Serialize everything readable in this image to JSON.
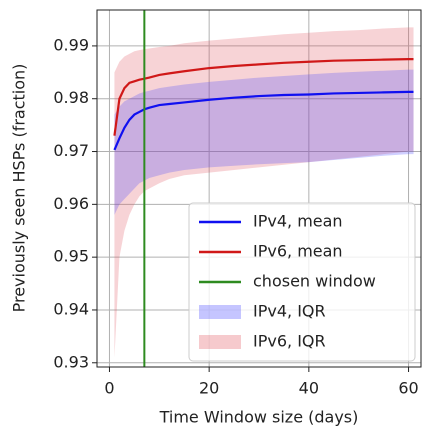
{
  "chart_data": {
    "type": "line",
    "xlabel": "Time Window size (days)",
    "ylabel": "Previously seen HSPs (fraction)",
    "x": [
      1,
      2,
      3,
      4,
      5,
      6,
      7,
      8,
      10,
      12,
      15,
      20,
      25,
      30,
      35,
      40,
      45,
      50,
      55,
      60,
      61
    ],
    "series": [
      {
        "name": "IPv4, mean",
        "color": "#1010f0",
        "values": [
          0.9703,
          0.9725,
          0.9745,
          0.976,
          0.977,
          0.9775,
          0.978,
          0.9783,
          0.9788,
          0.979,
          0.9793,
          0.9798,
          0.9802,
          0.9805,
          0.9807,
          0.9808,
          0.981,
          0.9811,
          0.9812,
          0.9813,
          0.9813
        ]
      },
      {
        "name": "IPv6, mean",
        "color": "#d01818",
        "values": [
          0.973,
          0.98,
          0.982,
          0.983,
          0.9833,
          0.9836,
          0.9838,
          0.984,
          0.9845,
          0.9848,
          0.9852,
          0.9858,
          0.9862,
          0.9865,
          0.9868,
          0.987,
          0.9872,
          0.9873,
          0.9874,
          0.9875,
          0.9875
        ]
      }
    ],
    "vline": {
      "name": "chosen window",
      "x": 7,
      "color": "#2e8b20"
    },
    "bands": [
      {
        "name": "IPv4, IQR",
        "color": "#4040ff",
        "lower": [
          0.958,
          0.96,
          0.961,
          0.962,
          0.963,
          0.964,
          0.9645,
          0.965,
          0.9655,
          0.966,
          0.9665,
          0.967,
          0.9673,
          0.9676,
          0.9678,
          0.968,
          0.9684,
          0.9688,
          0.9692,
          0.9695,
          0.9695
        ],
        "upper": [
          0.977,
          0.9785,
          0.9795,
          0.98,
          0.9805,
          0.981,
          0.9813,
          0.9815,
          0.982,
          0.9823,
          0.9827,
          0.9832,
          0.9836,
          0.984,
          0.9843,
          0.9846,
          0.9849,
          0.9851,
          0.9853,
          0.9855,
          0.9855
        ]
      },
      {
        "name": "IPv6, IQR",
        "color": "#e0505a",
        "lower": [
          0.931,
          0.95,
          0.955,
          0.958,
          0.96,
          0.9615,
          0.9625,
          0.963,
          0.964,
          0.9648,
          0.9655,
          0.966,
          0.9665,
          0.967,
          0.9675,
          0.968,
          0.9685,
          0.969,
          0.9695,
          0.97,
          0.97
        ],
        "upper": [
          0.985,
          0.987,
          0.988,
          0.9885,
          0.989,
          0.9892,
          0.9894,
          0.9895,
          0.9898,
          0.99,
          0.9905,
          0.991,
          0.9914,
          0.9918,
          0.9922,
          0.9925,
          0.9928,
          0.993,
          0.9933,
          0.9935,
          0.9935
        ]
      }
    ],
    "xlim": [
      -2.5,
      62.5
    ],
    "ylim": [
      0.9292,
      0.9968
    ],
    "xticks": [
      0,
      20,
      40,
      60
    ],
    "yticks": [
      0.93,
      0.94,
      0.95,
      0.96,
      0.97,
      0.98,
      0.99
    ],
    "grid": true,
    "legend": "lower right"
  }
}
